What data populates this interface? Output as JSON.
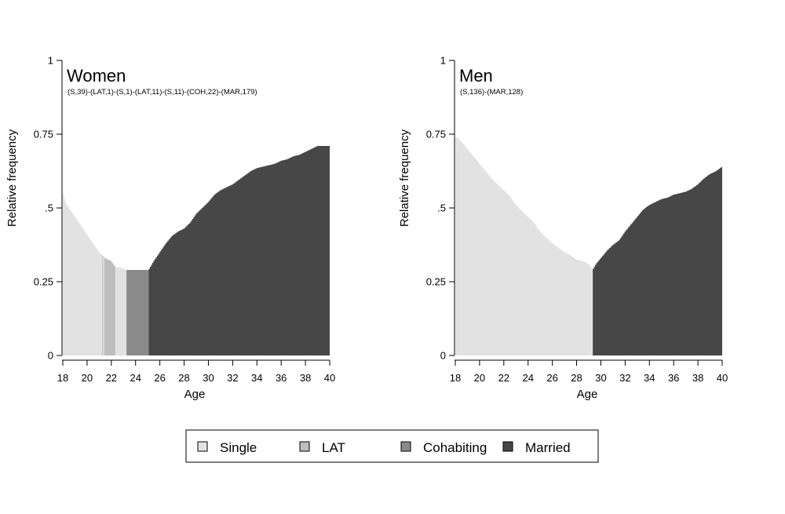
{
  "chart_data": [
    {
      "type": "area",
      "stacked": false,
      "title": "Women",
      "subtitle": "(S,39)-(LAT,1)-(S,1)-(LAT,11)-(S,11)-(COH,22)-(MAR,179)",
      "xlabel": "Age",
      "ylabel": "Relative frequency",
      "xlim": [
        18,
        40
      ],
      "ylim": [
        0,
        1
      ],
      "xticks": [
        "18",
        "20",
        "22",
        "24",
        "26",
        "28",
        "30",
        "32",
        "34",
        "36",
        "38",
        "40"
      ],
      "yticks": [
        "0",
        "0.25",
        ".5",
        "0.75",
        "1"
      ],
      "grid": false,
      "segments": [
        {
          "state": "Single",
          "from": 18.0,
          "to": 21.25
        },
        {
          "state": "LAT",
          "from": 21.25,
          "to": 21.33
        },
        {
          "state": "Single",
          "from": 21.33,
          "to": 21.42
        },
        {
          "state": "LAT",
          "from": 21.42,
          "to": 22.33
        },
        {
          "state": "Single",
          "from": 22.33,
          "to": 23.25
        },
        {
          "state": "Cohabiting",
          "from": 23.25,
          "to": 25.08
        },
        {
          "state": "Married",
          "from": 25.08,
          "to": 40.0
        }
      ],
      "frequency": {
        "x": [
          18.0,
          18.2,
          18.5,
          19.0,
          19.5,
          20.0,
          20.5,
          21.0,
          21.25,
          21.5,
          22.0,
          22.33,
          22.5,
          23.0,
          23.25,
          24.0,
          24.5,
          25.0,
          25.08,
          25.5,
          26.0,
          26.5,
          27.0,
          27.5,
          28.0,
          28.5,
          29.0,
          29.5,
          30.0,
          30.5,
          31.0,
          31.5,
          32.0,
          32.5,
          33.0,
          33.5,
          34.0,
          34.5,
          35.0,
          35.5,
          36.0,
          36.5,
          37.0,
          37.5,
          38.0,
          38.5,
          39.0,
          39.5,
          40.0
        ],
        "y": [
          0.56,
          0.52,
          0.5,
          0.47,
          0.44,
          0.41,
          0.38,
          0.35,
          0.34,
          0.33,
          0.32,
          0.3,
          0.3,
          0.295,
          0.29,
          0.29,
          0.29,
          0.29,
          0.29,
          0.32,
          0.35,
          0.38,
          0.405,
          0.42,
          0.43,
          0.45,
          0.48,
          0.5,
          0.52,
          0.545,
          0.56,
          0.57,
          0.58,
          0.595,
          0.61,
          0.625,
          0.635,
          0.64,
          0.645,
          0.65,
          0.66,
          0.665,
          0.675,
          0.68,
          0.69,
          0.7,
          0.71,
          0.71,
          0.71
        ]
      }
    },
    {
      "type": "area",
      "stacked": false,
      "title": "Men",
      "subtitle": "(S,136)-(MAR,128)",
      "xlabel": "Age",
      "ylabel": "Relative frequency",
      "xlim": [
        18,
        40
      ],
      "ylim": [
        0,
        1
      ],
      "xticks": [
        "18",
        "20",
        "22",
        "24",
        "26",
        "28",
        "30",
        "32",
        "34",
        "36",
        "38",
        "40"
      ],
      "yticks": [
        "0",
        "0.25",
        ".5",
        "0.75",
        "1"
      ],
      "grid": false,
      "segments": [
        {
          "state": "Single",
          "from": 18.0,
          "to": 29.33
        },
        {
          "state": "Married",
          "from": 29.33,
          "to": 40.0
        }
      ],
      "frequency": {
        "x": [
          18.0,
          18.3,
          18.6,
          19.0,
          19.5,
          20.0,
          20.5,
          21.0,
          21.5,
          22.0,
          22.5,
          23.0,
          23.5,
          24.0,
          24.5,
          25.0,
          25.5,
          26.0,
          26.5,
          27.0,
          27.5,
          28.0,
          28.5,
          29.0,
          29.33,
          29.6,
          30.0,
          30.5,
          31.0,
          31.5,
          32.0,
          32.5,
          33.0,
          33.5,
          34.0,
          34.5,
          35.0,
          35.5,
          36.0,
          36.5,
          37.0,
          37.5,
          38.0,
          38.5,
          39.0,
          39.5,
          40.0
        ],
        "y": [
          0.74,
          0.735,
          0.72,
          0.7,
          0.675,
          0.65,
          0.625,
          0.6,
          0.58,
          0.56,
          0.54,
          0.51,
          0.49,
          0.47,
          0.45,
          0.42,
          0.4,
          0.38,
          0.365,
          0.35,
          0.34,
          0.325,
          0.32,
          0.31,
          0.29,
          0.31,
          0.33,
          0.355,
          0.375,
          0.39,
          0.42,
          0.445,
          0.47,
          0.495,
          0.51,
          0.52,
          0.53,
          0.535,
          0.545,
          0.55,
          0.555,
          0.565,
          0.58,
          0.6,
          0.615,
          0.625,
          0.64
        ]
      }
    }
  ],
  "legend": {
    "placement": "bottom",
    "items": [
      {
        "label": "Single",
        "color": "#e2e2e2"
      },
      {
        "label": "LAT",
        "color": "#bdbdbd"
      },
      {
        "label": "Cohabiting",
        "color": "#8a8a8a"
      },
      {
        "label": "Married",
        "color": "#474747"
      }
    ]
  }
}
